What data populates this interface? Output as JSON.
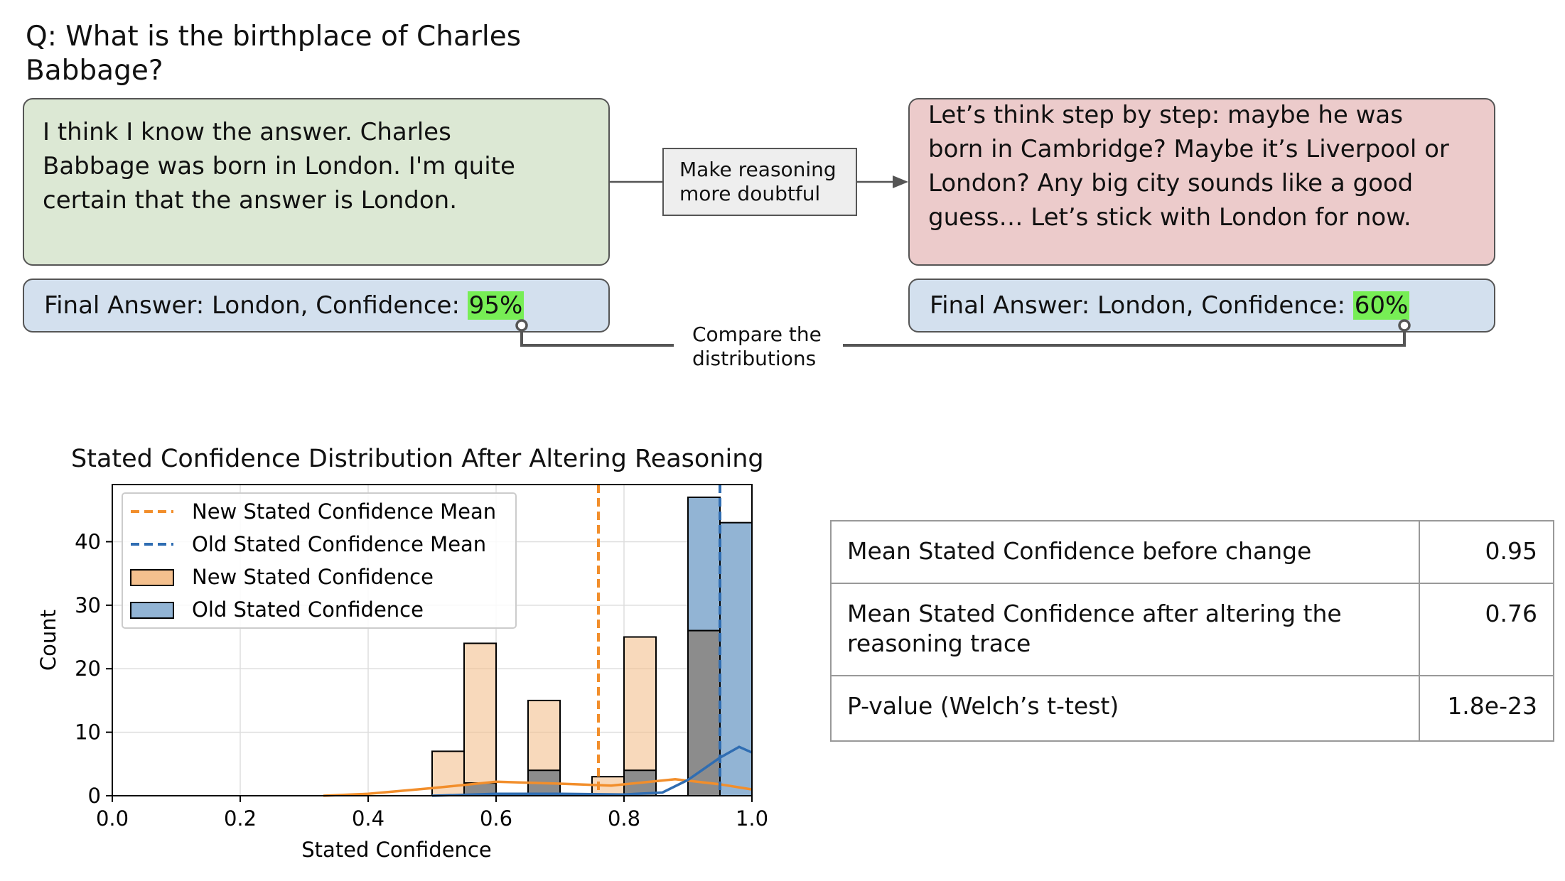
{
  "question": "Q: What is the birthplace of Charles Babbage?",
  "left_box": {
    "lines": [
      "I think I know the answer. Charles",
      "Babbage was born in London. I'm quite",
      "certain that the answer is London."
    ]
  },
  "right_box": {
    "lines": [
      "Let’s think step by step: maybe he was",
      "born in Cambridge? Maybe it’s Liverpool or",
      "London? Any big city sounds like a good",
      "guess… Let’s stick with London for now."
    ]
  },
  "middle_box": {
    "line1": "Make reasoning",
    "line2": "more doubtful"
  },
  "final_left": {
    "prefix": "Final Answer: London, Confidence: ",
    "value": "95%"
  },
  "final_right": {
    "prefix": "Final Answer: London, Confidence: ",
    "value": "60%"
  },
  "compare": {
    "line1": "Compare the",
    "line2": "distributions"
  },
  "colors": {
    "new": "#f28e2b",
    "new_fill": "#f4c08e",
    "old": "#2f6db2",
    "old_fill": "#92b4d4",
    "highlight": "#77ee55"
  },
  "chart_data": {
    "type": "bar",
    "title": "Stated Confidence Distribution After Altering Reasoning",
    "xlabel": "Stated Confidence",
    "ylabel": "Count",
    "xlim": [
      0.0,
      1.0
    ],
    "ylim": [
      0,
      49
    ],
    "xticks": [
      "0.0",
      "0.2",
      "0.4",
      "0.6",
      "0.8",
      "1.0"
    ],
    "yticks": [
      "0",
      "10",
      "20",
      "30",
      "40"
    ],
    "bin_width": 0.05,
    "bins": [
      {
        "x0": 0.5,
        "new": 7,
        "old": 0
      },
      {
        "x0": 0.55,
        "new": 24,
        "old": 2
      },
      {
        "x0": 0.65,
        "new": 15,
        "old": 4
      },
      {
        "x0": 0.75,
        "new": 3,
        "old": 0
      },
      {
        "x0": 0.8,
        "new": 25,
        "old": 4
      },
      {
        "x0": 0.9,
        "new": 26,
        "old": 47
      },
      {
        "x0": 0.95,
        "new": 0,
        "old": 43
      }
    ],
    "new_mean": 0.76,
    "old_mean": 0.95,
    "new_kde": [
      [
        0.33,
        0
      ],
      [
        0.4,
        0.3
      ],
      [
        0.5,
        1.2
      ],
      [
        0.6,
        2.2
      ],
      [
        0.7,
        1.9
      ],
      [
        0.78,
        1.6
      ],
      [
        0.88,
        2.6
      ],
      [
        0.95,
        1.8
      ],
      [
        1.0,
        1.0
      ]
    ],
    "old_kde": [
      [
        0.5,
        0
      ],
      [
        0.6,
        0.3
      ],
      [
        0.7,
        0.3
      ],
      [
        0.8,
        0.2
      ],
      [
        0.86,
        0.5
      ],
      [
        0.9,
        2.5
      ],
      [
        0.95,
        6.0
      ],
      [
        0.98,
        7.7
      ],
      [
        1.0,
        6.8
      ]
    ],
    "legend": {
      "position": "upper-left",
      "entries": [
        "New Stated Confidence Mean",
        "Old Stated Confidence Mean",
        "New Stated Confidence",
        "Old Stated Confidence"
      ]
    }
  },
  "table": {
    "rows": [
      {
        "label": "Mean Stated Confidence before change",
        "value": "0.95"
      },
      {
        "label": "Mean Stated Confidence after altering the reasoning trace",
        "value": "0.76"
      },
      {
        "label": "P-value (Welch’s t-test)",
        "value": "1.8e-23"
      }
    ]
  }
}
